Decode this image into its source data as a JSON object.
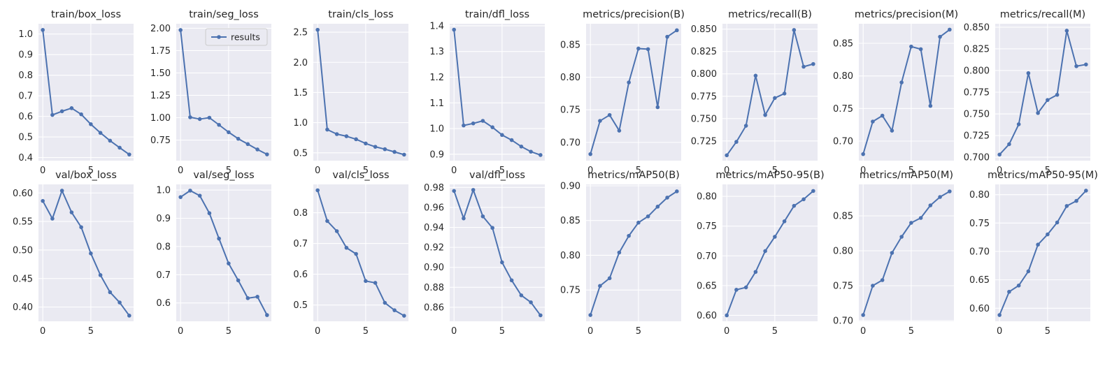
{
  "chart_data": [
    {
      "type": "line",
      "title": "train/box_loss",
      "x": [
        0,
        1,
        2,
        3,
        4,
        5,
        6,
        7,
        8,
        9
      ],
      "series": [
        {
          "values": [
            1.02,
            0.607,
            0.625,
            0.64,
            0.61,
            0.562,
            0.52,
            0.482,
            0.448,
            0.415
          ]
        }
      ],
      "ylim": [
        0.385,
        1.05
      ],
      "xticks": [
        0,
        5
      ],
      "yticks": [
        0.4,
        0.5,
        0.6,
        0.7,
        0.8,
        0.9,
        1.0
      ],
      "ytick_labels": [
        "0.4",
        "0.5",
        "0.6",
        "0.7",
        "0.8",
        "0.9",
        "1.0"
      ]
    },
    {
      "type": "line",
      "title": "train/seg_loss",
      "x": [
        0,
        1,
        2,
        3,
        4,
        5,
        6,
        7,
        8,
        9
      ],
      "series": [
        {
          "name": "results",
          "values": [
            1.98,
            1.005,
            0.985,
            1.0,
            0.92,
            0.838,
            0.765,
            0.705,
            0.645,
            0.59
          ]
        }
      ],
      "ylim": [
        0.52,
        2.05
      ],
      "xticks": [
        0,
        5
      ],
      "yticks": [
        0.75,
        1.0,
        1.25,
        1.5,
        1.75,
        2.0
      ],
      "ytick_labels": [
        "0.75",
        "1.00",
        "1.25",
        "1.50",
        "1.75",
        "2.00"
      ],
      "legend": "upper right"
    },
    {
      "type": "line",
      "title": "train/cls_loss",
      "x": [
        0,
        1,
        2,
        3,
        4,
        5,
        6,
        7,
        8,
        9
      ],
      "series": [
        {
          "values": [
            2.54,
            0.885,
            0.81,
            0.775,
            0.725,
            0.655,
            0.6,
            0.56,
            0.515,
            0.47
          ]
        }
      ],
      "ylim": [
        0.37,
        2.64
      ],
      "xticks": [
        0,
        5
      ],
      "yticks": [
        0.5,
        1.0,
        1.5,
        2.0,
        2.5
      ],
      "ytick_labels": [
        "0.5",
        "1.0",
        "1.5",
        "2.0",
        "2.5"
      ]
    },
    {
      "type": "line",
      "title": "train/dfl_loss",
      "x": [
        0,
        1,
        2,
        3,
        4,
        5,
        6,
        7,
        8,
        9
      ],
      "series": [
        {
          "values": [
            1.385,
            1.012,
            1.02,
            1.03,
            1.005,
            0.975,
            0.955,
            0.93,
            0.91,
            0.897
          ]
        }
      ],
      "ylim": [
        0.875,
        1.408
      ],
      "xticks": [
        0,
        5
      ],
      "yticks": [
        0.9,
        1.0,
        1.1,
        1.2,
        1.3,
        1.4
      ],
      "ytick_labels": [
        "0.9",
        "1.0",
        "1.1",
        "1.2",
        "1.3",
        "1.4"
      ]
    },
    {
      "type": "line",
      "title": "metrics/precision(B)",
      "x": [
        0,
        1,
        2,
        3,
        4,
        5,
        6,
        7,
        8,
        9
      ],
      "series": [
        {
          "values": [
            0.682,
            0.733,
            0.742,
            0.718,
            0.792,
            0.844,
            0.843,
            0.754,
            0.862,
            0.872
          ]
        }
      ],
      "ylim": [
        0.672,
        0.882
      ],
      "xticks": [
        0,
        5
      ],
      "yticks": [
        0.7,
        0.75,
        0.8,
        0.85
      ],
      "ytick_labels": [
        "0.70",
        "0.75",
        "0.80",
        "0.85"
      ]
    },
    {
      "type": "line",
      "title": "metrics/recall(B)",
      "x": [
        0,
        1,
        2,
        3,
        4,
        5,
        6,
        7,
        8,
        9
      ],
      "series": [
        {
          "values": [
            0.709,
            0.724,
            0.742,
            0.798,
            0.754,
            0.773,
            0.778,
            0.849,
            0.808,
            0.811
          ]
        }
      ],
      "ylim": [
        0.703,
        0.856
      ],
      "xticks": [
        0,
        5
      ],
      "yticks": [
        0.725,
        0.75,
        0.775,
        0.8,
        0.825,
        0.85
      ],
      "ytick_labels": [
        "0.725",
        "0.750",
        "0.775",
        "0.800",
        "0.825",
        "0.850"
      ]
    },
    {
      "type": "line",
      "title": "metrics/precision(M)",
      "x": [
        0,
        1,
        2,
        3,
        4,
        5,
        6,
        7,
        8,
        9
      ],
      "series": [
        {
          "values": [
            0.68,
            0.73,
            0.739,
            0.716,
            0.79,
            0.845,
            0.841,
            0.754,
            0.86,
            0.871
          ]
        }
      ],
      "ylim": [
        0.67,
        0.88
      ],
      "xticks": [
        0,
        5
      ],
      "yticks": [
        0.7,
        0.75,
        0.8,
        0.85
      ],
      "ytick_labels": [
        "0.70",
        "0.75",
        "0.80",
        "0.85"
      ]
    },
    {
      "type": "line",
      "title": "metrics/recall(M)",
      "x": [
        0,
        1,
        2,
        3,
        4,
        5,
        6,
        7,
        8,
        9
      ],
      "series": [
        {
          "values": [
            0.703,
            0.715,
            0.738,
            0.797,
            0.751,
            0.766,
            0.772,
            0.846,
            0.805,
            0.807
          ]
        }
      ],
      "ylim": [
        0.696,
        0.854
      ],
      "xticks": [
        0,
        5
      ],
      "yticks": [
        0.7,
        0.725,
        0.75,
        0.775,
        0.8,
        0.825,
        0.85
      ],
      "ytick_labels": [
        "0.700",
        "0.725",
        "0.750",
        "0.775",
        "0.800",
        "0.825",
        "0.850"
      ]
    },
    {
      "type": "line",
      "title": "val/box_loss",
      "x": [
        0,
        1,
        2,
        3,
        4,
        5,
        6,
        7,
        8,
        9
      ],
      "series": [
        {
          "values": [
            0.586,
            0.555,
            0.604,
            0.566,
            0.54,
            0.494,
            0.456,
            0.426,
            0.408,
            0.385
          ]
        }
      ],
      "ylim": [
        0.375,
        0.615
      ],
      "xticks": [
        0,
        5
      ],
      "yticks": [
        0.4,
        0.45,
        0.5,
        0.55,
        0.6
      ],
      "ytick_labels": [
        "0.40",
        "0.45",
        "0.50",
        "0.55",
        "0.60"
      ]
    },
    {
      "type": "line",
      "title": "val/seg_loss",
      "x": [
        0,
        1,
        2,
        3,
        4,
        5,
        6,
        7,
        8,
        9
      ],
      "series": [
        {
          "values": [
            0.975,
            0.998,
            0.98,
            0.918,
            0.828,
            0.74,
            0.68,
            0.617,
            0.622,
            0.557
          ]
        }
      ],
      "ylim": [
        0.535,
        1.02
      ],
      "xticks": [
        0,
        5
      ],
      "yticks": [
        0.6,
        0.7,
        0.8,
        0.9,
        1.0
      ],
      "ytick_labels": [
        "0.6",
        "0.7",
        "0.8",
        "0.9",
        "1.0"
      ]
    },
    {
      "type": "line",
      "title": "val/cls_loss",
      "x": [
        0,
        1,
        2,
        3,
        4,
        5,
        6,
        7,
        8,
        9
      ],
      "series": [
        {
          "values": [
            0.873,
            0.773,
            0.74,
            0.686,
            0.666,
            0.578,
            0.572,
            0.507,
            0.483,
            0.465
          ]
        }
      ],
      "ylim": [
        0.447,
        0.892
      ],
      "xticks": [
        0,
        5
      ],
      "yticks": [
        0.5,
        0.6,
        0.7,
        0.8
      ],
      "ytick_labels": [
        "0.5",
        "0.6",
        "0.7",
        "0.8"
      ]
    },
    {
      "type": "line",
      "title": "val/dfl_loss",
      "x": [
        0,
        1,
        2,
        3,
        4,
        5,
        6,
        7,
        8,
        9
      ],
      "series": [
        {
          "values": [
            0.9765,
            0.949,
            0.9775,
            0.951,
            0.9395,
            0.905,
            0.887,
            0.872,
            0.865,
            0.852
          ]
        }
      ],
      "ylim": [
        0.846,
        0.983
      ],
      "xticks": [
        0,
        5
      ],
      "yticks": [
        0.86,
        0.88,
        0.9,
        0.92,
        0.94,
        0.96,
        0.98
      ],
      "ytick_labels": [
        "0.86",
        "0.88",
        "0.90",
        "0.92",
        "0.94",
        "0.96",
        "0.98"
      ]
    },
    {
      "type": "line",
      "title": "metrics/mAP50(B)",
      "x": [
        0,
        1,
        2,
        3,
        4,
        5,
        6,
        7,
        8,
        9
      ],
      "series": [
        {
          "values": [
            0.714,
            0.756,
            0.767,
            0.804,
            0.828,
            0.847,
            0.856,
            0.87,
            0.883,
            0.892
          ]
        }
      ],
      "ylim": [
        0.705,
        0.902
      ],
      "xticks": [
        0,
        5
      ],
      "yticks": [
        0.75,
        0.8,
        0.85,
        0.9
      ],
      "ytick_labels": [
        "0.75",
        "0.80",
        "0.85",
        "0.90"
      ]
    },
    {
      "type": "line",
      "title": "metrics/mAP50-95(B)",
      "x": [
        0,
        1,
        2,
        3,
        4,
        5,
        6,
        7,
        8,
        9
      ],
      "series": [
        {
          "values": [
            0.6,
            0.643,
            0.647,
            0.673,
            0.708,
            0.732,
            0.758,
            0.784,
            0.795,
            0.809
          ]
        }
      ],
      "ylim": [
        0.59,
        0.82
      ],
      "xticks": [
        0,
        5
      ],
      "yticks": [
        0.6,
        0.65,
        0.7,
        0.75,
        0.8
      ],
      "ytick_labels": [
        "0.60",
        "0.65",
        "0.70",
        "0.75",
        "0.80"
      ]
    },
    {
      "type": "line",
      "title": "metrics/mAP50(M)",
      "x": [
        0,
        1,
        2,
        3,
        4,
        5,
        6,
        7,
        8,
        9
      ],
      "series": [
        {
          "values": [
            0.708,
            0.75,
            0.758,
            0.797,
            0.82,
            0.84,
            0.847,
            0.865,
            0.877,
            0.885
          ]
        }
      ],
      "ylim": [
        0.699,
        0.895
      ],
      "xticks": [
        0,
        5
      ],
      "yticks": [
        0.7,
        0.75,
        0.8,
        0.85
      ],
      "ytick_labels": [
        "0.70",
        "0.75",
        "0.80",
        "0.85"
      ]
    },
    {
      "type": "line",
      "title": "metrics/mAP50-95(M)",
      "x": [
        0,
        1,
        2,
        3,
        4,
        5,
        6,
        7,
        8,
        9
      ],
      "series": [
        {
          "values": [
            0.588,
            0.629,
            0.64,
            0.665,
            0.712,
            0.73,
            0.751,
            0.78,
            0.789,
            0.807
          ]
        }
      ],
      "ylim": [
        0.577,
        0.818
      ],
      "xticks": [
        0,
        5
      ],
      "yticks": [
        0.6,
        0.65,
        0.7,
        0.75,
        0.8
      ],
      "ytick_labels": [
        "0.60",
        "0.65",
        "0.70",
        "0.75",
        "0.80"
      ]
    }
  ]
}
